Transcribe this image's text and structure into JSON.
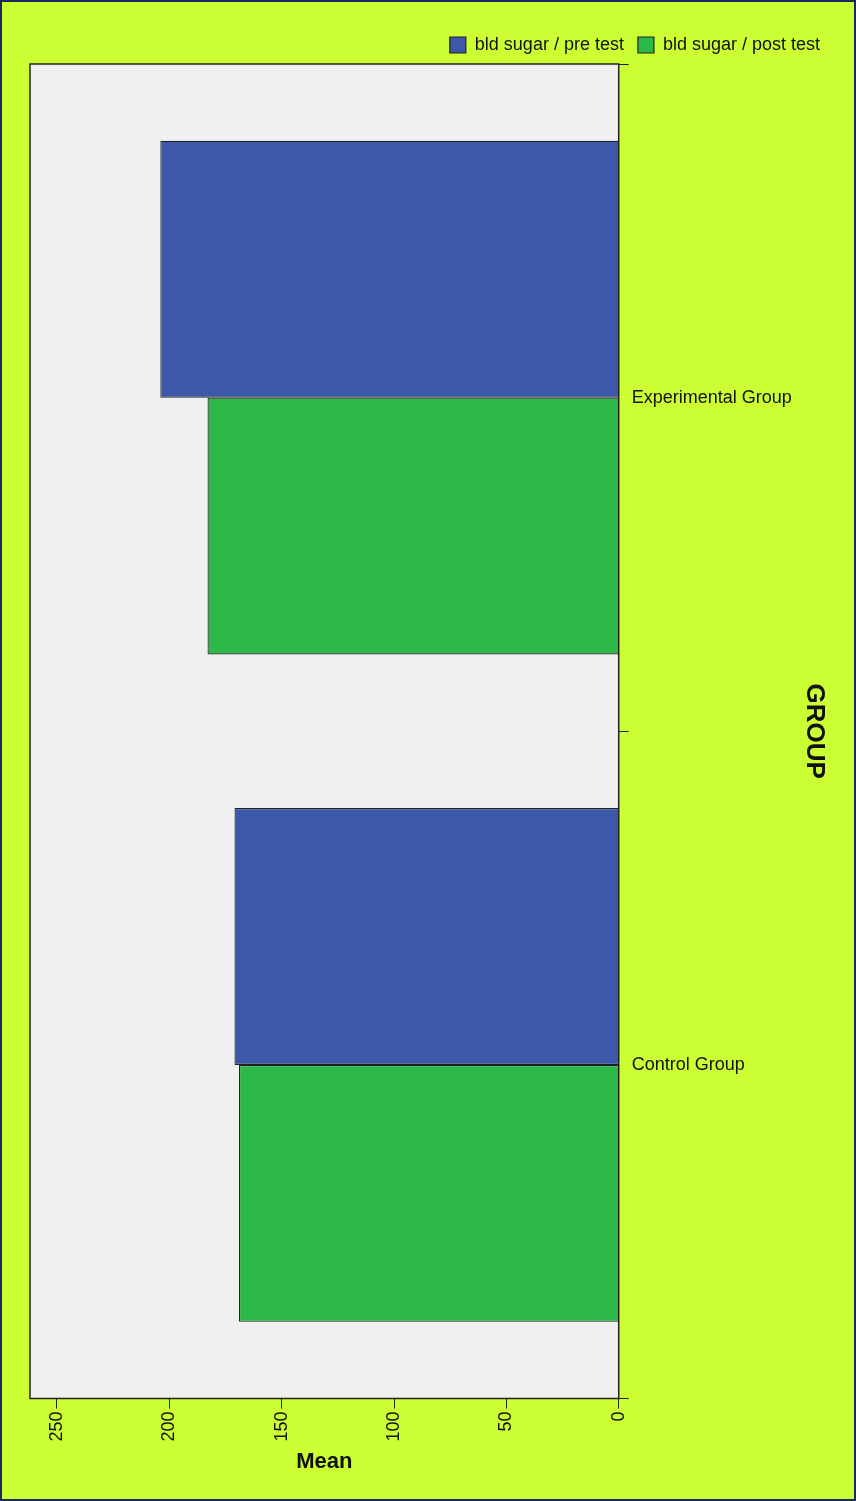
{
  "chart_data": {
    "type": "bar",
    "orientation": "horizontal",
    "xlabel": "Mean",
    "ylabel": "GROUP",
    "categories": [
      "Experimental Group",
      "Control Group"
    ],
    "series": [
      {
        "name": "bld sugar / pre test",
        "color": "#3c58a8",
        "values": [
          204,
          171
        ]
      },
      {
        "name": "bld sugar / post test",
        "color": "#2db84a",
        "values": [
          183,
          169
        ]
      }
    ],
    "xlim": [
      262,
      0
    ],
    "xticks": [
      0,
      50,
      100,
      150,
      200,
      250
    ],
    "grid": false,
    "legend": "top right"
  }
}
